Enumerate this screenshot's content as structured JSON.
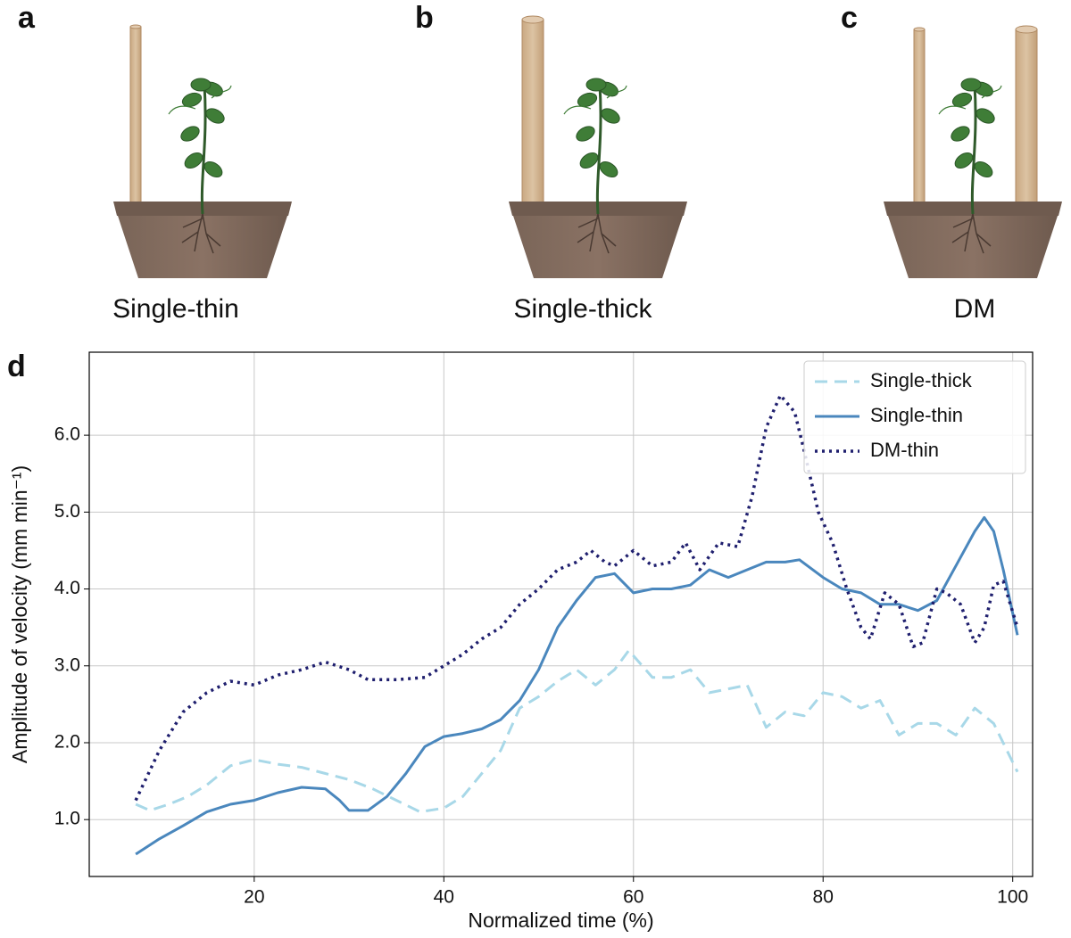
{
  "panels": [
    {
      "label": "a",
      "caption": "Single-thin"
    },
    {
      "label": "b",
      "caption": "Single-thick"
    },
    {
      "label": "c",
      "caption": "DM"
    }
  ],
  "chart_data": {
    "type": "line",
    "panel_label": "d",
    "x_label": "Normalized time (%)",
    "y_label": "Amplitude of velocity (mm min⁻¹)",
    "xlim": [
      2.6,
      102.1
    ],
    "ylim": [
      0.26,
      7.08
    ],
    "xticks": [
      20,
      40,
      60,
      80,
      100
    ],
    "yticks": [
      {
        "value": 1,
        "label": "1.0"
      },
      {
        "value": 2,
        "label": "2.0"
      },
      {
        "value": 3,
        "label": "3.0"
      },
      {
        "value": 4,
        "label": "4.0"
      },
      {
        "value": 5,
        "label": "5.0"
      },
      {
        "value": 6,
        "label": "6.0"
      }
    ],
    "grid": true,
    "legend": "upper right",
    "series": [
      {
        "name": "Single-thick",
        "color": "#a8d8e8",
        "style": "dashed",
        "x": [
          7.5,
          9,
          11,
          13,
          15,
          17.5,
          20,
          22.5,
          25,
          27.5,
          30,
          32.5,
          35,
          37.5,
          40,
          42,
          44,
          46,
          48,
          50,
          52,
          54,
          56,
          58,
          59.5,
          62,
          64,
          66,
          68,
          70,
          72,
          74,
          76,
          78,
          80,
          82,
          84,
          86,
          88,
          90,
          92,
          94,
          96,
          98,
          100.5
        ],
        "values": [
          1.2,
          1.12,
          1.2,
          1.3,
          1.45,
          1.7,
          1.78,
          1.72,
          1.68,
          1.6,
          1.52,
          1.4,
          1.25,
          1.1,
          1.15,
          1.3,
          1.6,
          1.9,
          2.45,
          2.6,
          2.8,
          2.95,
          2.75,
          2.95,
          3.2,
          2.85,
          2.85,
          2.95,
          2.65,
          2.7,
          2.75,
          2.2,
          2.4,
          2.35,
          2.65,
          2.6,
          2.45,
          2.55,
          2.1,
          2.25,
          2.25,
          2.1,
          2.45,
          2.25,
          1.62
        ]
      },
      {
        "name": "Single-thin",
        "color": "#4a87bd",
        "style": "solid",
        "x": [
          7.5,
          10,
          12.5,
          15,
          17.5,
          20,
          22.5,
          25,
          27.5,
          29,
          30,
          32,
          34,
          36,
          38,
          40,
          42,
          44,
          46,
          48,
          50,
          52,
          54,
          56,
          58,
          60,
          62,
          64,
          66,
          68,
          70,
          72,
          74,
          76,
          77.5,
          80,
          82,
          84,
          86,
          88,
          90,
          92,
          94,
          96,
          97,
          98,
          99,
          100.5
        ],
        "values": [
          0.55,
          0.75,
          0.92,
          1.1,
          1.2,
          1.25,
          1.35,
          1.42,
          1.4,
          1.25,
          1.12,
          1.12,
          1.3,
          1.6,
          1.95,
          2.08,
          2.12,
          2.18,
          2.3,
          2.55,
          2.95,
          3.5,
          3.85,
          4.15,
          4.2,
          3.95,
          4.0,
          4.0,
          4.05,
          4.25,
          4.15,
          4.25,
          4.35,
          4.35,
          4.38,
          4.15,
          4.0,
          3.95,
          3.8,
          3.8,
          3.72,
          3.85,
          4.3,
          4.75,
          4.93,
          4.75,
          4.25,
          3.4
        ]
      },
      {
        "name": "DM-thin",
        "color": "#1f1f6e",
        "style": "dotted",
        "x": [
          7.5,
          10,
          12.5,
          15,
          17.5,
          20,
          22.5,
          25,
          27.5,
          30,
          32,
          35,
          38,
          40,
          42,
          44,
          46,
          48,
          50,
          52,
          54,
          55.5,
          57,
          58,
          60,
          62,
          64,
          65.5,
          67,
          69,
          71,
          72.5,
          74,
          75.5,
          77,
          78,
          79.5,
          81,
          82.5,
          84,
          85,
          86.5,
          88,
          89.5,
          90.5,
          92,
          93,
          94.5,
          96,
          97,
          98,
          99,
          100.5
        ],
        "values": [
          1.25,
          1.9,
          2.4,
          2.65,
          2.8,
          2.75,
          2.88,
          2.95,
          3.05,
          2.95,
          2.82,
          2.82,
          2.85,
          3.0,
          3.15,
          3.35,
          3.5,
          3.8,
          4.0,
          4.25,
          4.35,
          4.5,
          4.35,
          4.3,
          4.5,
          4.3,
          4.35,
          4.6,
          4.25,
          4.6,
          4.55,
          5.2,
          6.1,
          6.52,
          6.3,
          5.8,
          5.0,
          4.6,
          4.0,
          3.5,
          3.35,
          3.95,
          3.8,
          3.25,
          3.3,
          4.0,
          3.95,
          3.8,
          3.3,
          3.5,
          4.05,
          4.1,
          3.5
        ]
      }
    ]
  }
}
